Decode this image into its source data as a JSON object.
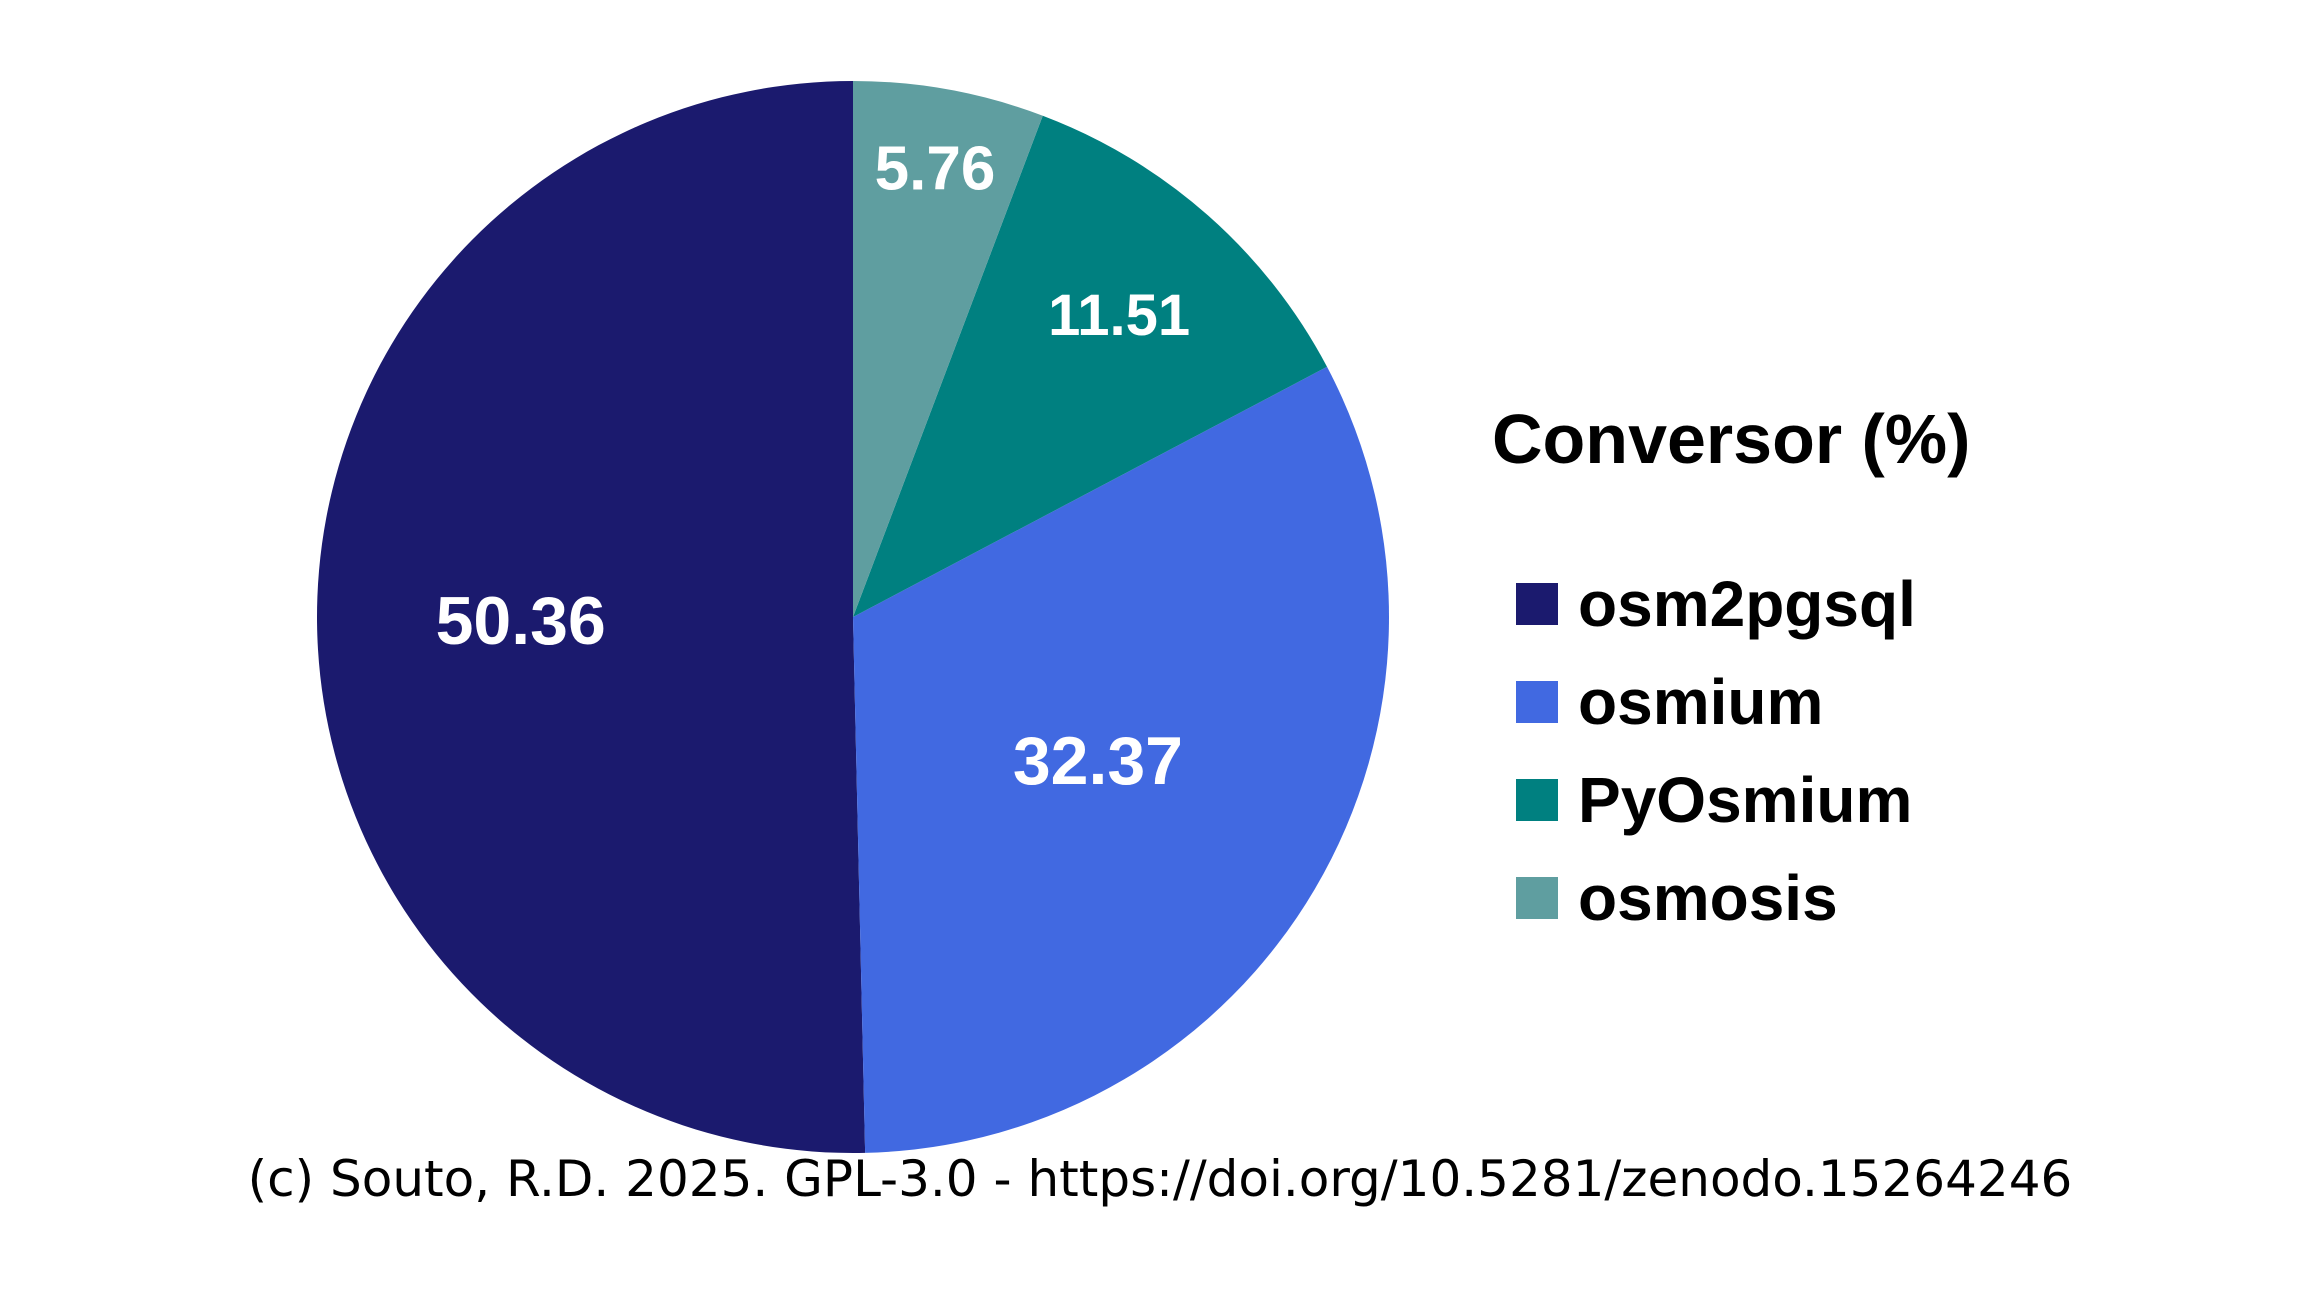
{
  "chart_data": {
    "type": "pie",
    "categories": [
      "osm2pgsql",
      "osmium",
      "PyOsmium",
      "osmosis"
    ],
    "values": [
      50.36,
      32.37,
      11.51,
      5.76
    ],
    "colors": [
      "#1b1a6e",
      "#4169e1",
      "#008080",
      "#5f9ea0"
    ],
    "data_labels": [
      "50.36",
      "32.37",
      "11.51",
      "5.76"
    ],
    "legend_title": "Conversor (%)",
    "legend_position": "right",
    "start": "top",
    "direction": "counterclockwise"
  },
  "footer": {
    "credit": "(c) Souto, R.D. 2025. GPL-3.0 - https://doi.org/10.5281/zenodo.15264246"
  }
}
